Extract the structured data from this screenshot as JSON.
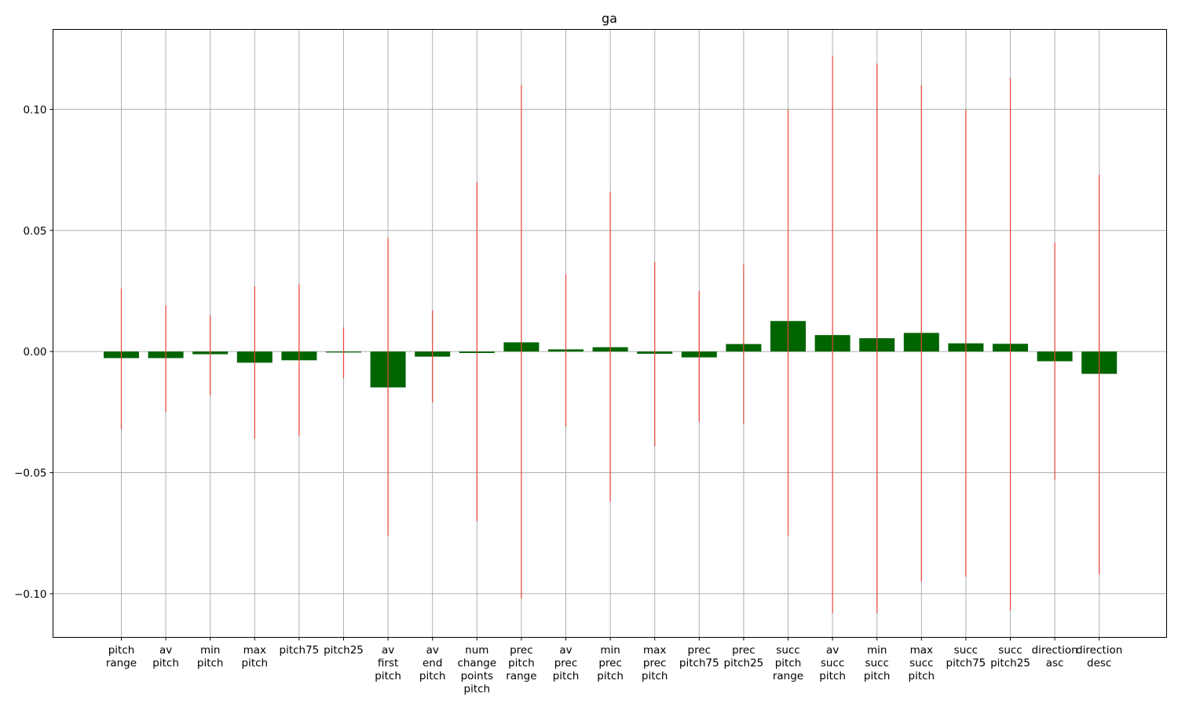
{
  "chart_data": {
    "type": "bar",
    "title": "ga",
    "xlabel": "",
    "ylabel": "",
    "ylim": [
      -0.118,
      0.133
    ],
    "yticks": [
      -0.1,
      -0.05,
      0.0,
      0.05,
      0.1
    ],
    "ytick_labels": [
      "−0.10",
      "−0.05",
      "0.00",
      "0.05",
      "0.10"
    ],
    "grid": true,
    "bar_color": "#006400",
    "error_color": "#e8463a",
    "grid_color": "#b0b0b0",
    "categories": [
      "pitch\nrange",
      "av\npitch",
      "min\npitch",
      "max\npitch",
      "pitch75",
      "pitch25",
      "av\nfirst\npitch",
      "av\nend\npitch",
      "num\nchange\npoints\npitch",
      "prec\npitch\nrange",
      "av\nprec\npitch",
      "min\nprec\npitch",
      "max\nprec\npitch",
      "prec\npitch75",
      "prec\npitch25",
      "succ\npitch\nrange",
      "av\nsucc\npitch",
      "min\nsucc\npitch",
      "max\nsucc\npitch",
      "succ\npitch75",
      "succ\npitch25",
      "direction\nasc",
      "direction\ndesc"
    ],
    "values": [
      -0.0027,
      -0.0027,
      -0.0011,
      -0.0046,
      -0.0036,
      -0.0004,
      -0.0148,
      -0.0021,
      -0.0006,
      0.0038,
      0.0009,
      0.0018,
      -0.0009,
      -0.0024,
      0.0031,
      0.0126,
      0.0068,
      0.0055,
      0.0077,
      0.0034,
      0.0032,
      -0.004,
      -0.0092
    ],
    "error_low": [
      -0.032,
      -0.025,
      -0.018,
      -0.036,
      -0.035,
      -0.011,
      -0.076,
      -0.021,
      -0.07,
      -0.102,
      -0.031,
      -0.062,
      -0.039,
      -0.029,
      -0.03,
      -0.076,
      -0.108,
      -0.108,
      -0.095,
      -0.093,
      -0.107,
      -0.053,
      -0.092
    ],
    "error_high": [
      0.026,
      0.019,
      0.015,
      0.027,
      0.028,
      0.01,
      0.047,
      0.017,
      0.07,
      0.11,
      0.032,
      0.066,
      0.037,
      0.025,
      0.036,
      0.1,
      0.122,
      0.119,
      0.11,
      0.1,
      0.113,
      0.045,
      0.073
    ]
  }
}
